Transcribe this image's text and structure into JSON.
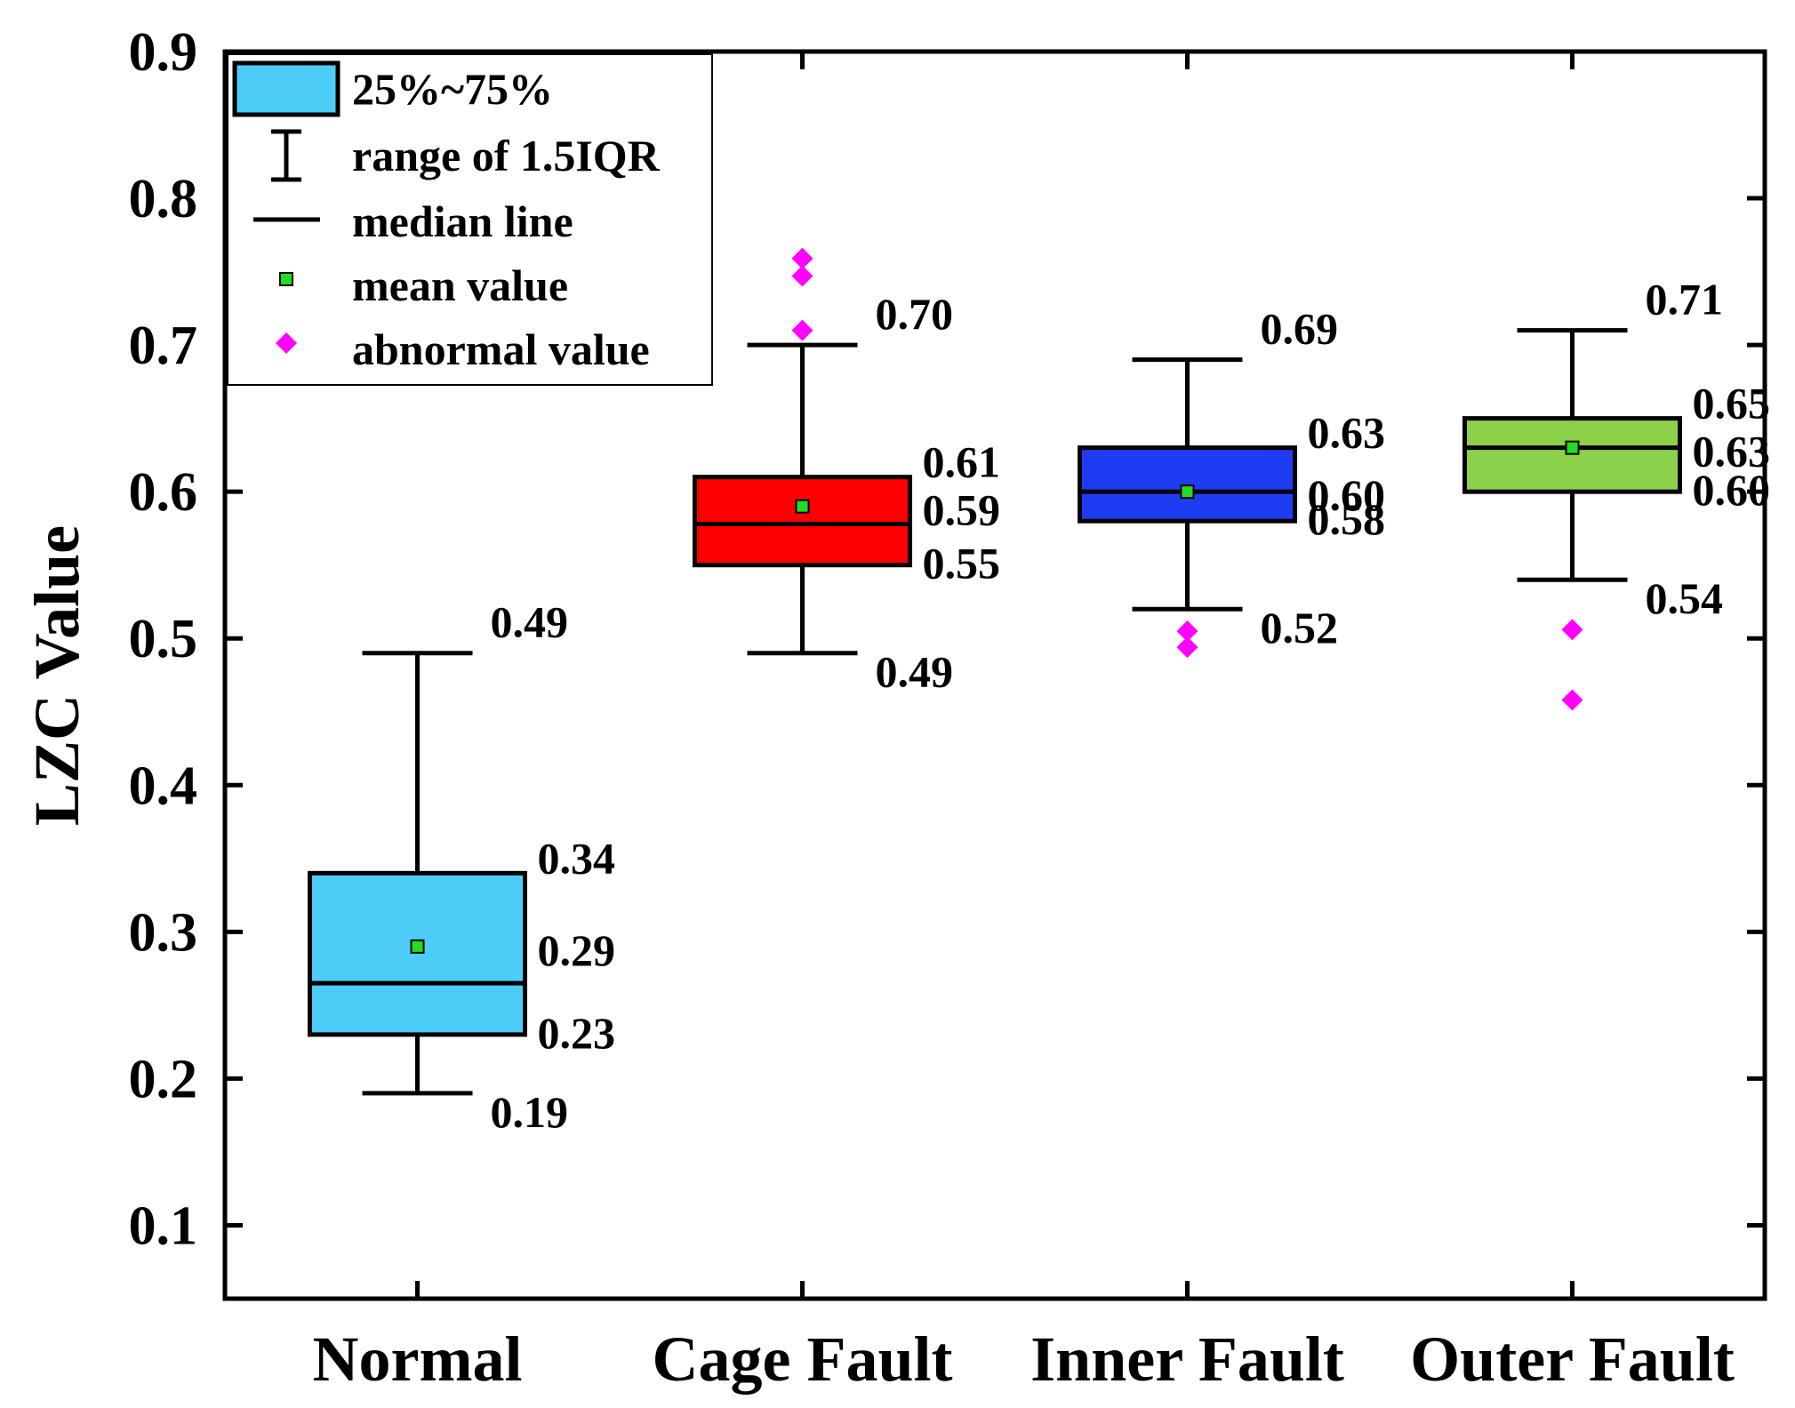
{
  "chart_data": {
    "type": "box",
    "ylabel": "LZC Value",
    "xlabel": "",
    "ylim": [
      0.05,
      0.9
    ],
    "yticks": [
      "0.1",
      "0.2",
      "0.3",
      "0.4",
      "0.5",
      "0.6",
      "0.7",
      "0.8",
      "0.9"
    ],
    "categories": [
      "Normal",
      "Cage Fault",
      "Inner Fault",
      "Outer Fault"
    ],
    "boxes": [
      {
        "name": "Normal",
        "color": "#4ccdf7",
        "whisker_low": 0.19,
        "q1": 0.23,
        "median": 0.265,
        "q3": 0.34,
        "whisker_high": 0.49,
        "mean": 0.29,
        "outliers": [],
        "labels": {
          "whisker_high": "0.49",
          "q3": "0.34",
          "mean": "0.29",
          "q1": "0.23",
          "whisker_low": "0.19"
        }
      },
      {
        "name": "Cage Fault",
        "color": "#ff0000",
        "whisker_low": 0.49,
        "q1": 0.55,
        "median": 0.578,
        "q3": 0.61,
        "whisker_high": 0.7,
        "mean": 0.59,
        "outliers": [
          0.71,
          0.747,
          0.759
        ],
        "labels": {
          "whisker_high": "0.70",
          "q3": "0.61",
          "mean": "0.59",
          "q1": "0.55",
          "whisker_low": "0.49"
        }
      },
      {
        "name": "Inner Fault",
        "color": "#1f3cf5",
        "whisker_low": 0.52,
        "q1": 0.58,
        "median": 0.6,
        "q3": 0.63,
        "whisker_high": 0.69,
        "mean": 0.6,
        "outliers": [
          0.505,
          0.494
        ],
        "labels": {
          "whisker_high": "0.69",
          "q3": "0.63",
          "mean": "0.60",
          "q1": "0.58",
          "whisker_low": "0.52"
        }
      },
      {
        "name": "Outer Fault",
        "color": "#8cd14a",
        "whisker_low": 0.54,
        "q1": 0.6,
        "median": 0.63,
        "q3": 0.65,
        "whisker_high": 0.71,
        "mean": 0.63,
        "outliers": [
          0.506,
          0.458
        ],
        "labels": {
          "whisker_high": "0.71",
          "q3": "0.65",
          "mean": "0.63",
          "q1": "0.60",
          "whisker_low": "0.54"
        }
      }
    ],
    "legend": {
      "position": "top-left",
      "entries": [
        {
          "kind": "box",
          "label": "25%~75%"
        },
        {
          "kind": "whisker",
          "label": "range of 1.5IQR"
        },
        {
          "kind": "median",
          "label": "median line"
        },
        {
          "kind": "mean",
          "label": "mean value"
        },
        {
          "kind": "outlier",
          "label": "abnormal value"
        }
      ]
    },
    "colors": {
      "mean_marker": "#22dd22",
      "outlier_marker": "#ff00ff",
      "legend_box": "#4ccdf7"
    }
  }
}
